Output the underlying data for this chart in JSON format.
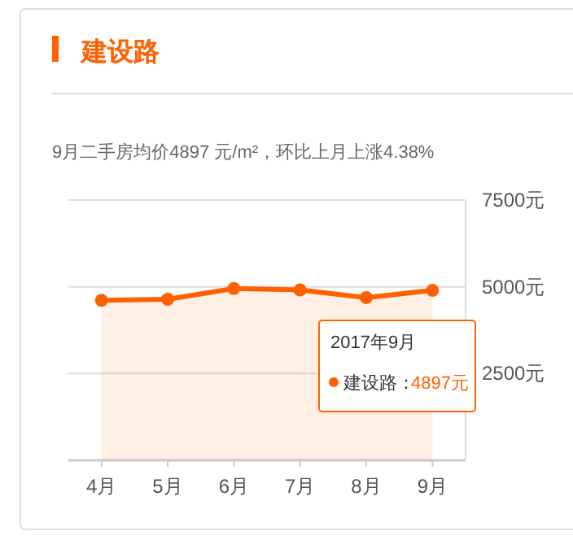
{
  "chart_data": {
    "type": "area",
    "subtitle": "9月二手房均价4897 元/m²，环比上月上涨4.38%",
    "categories": [
      "4月",
      "5月",
      "6月",
      "7月",
      "8月",
      "9月"
    ],
    "series": [
      {
        "name": "建设路",
        "color": "#ff6000",
        "values": [
          4610,
          4640,
          4950,
          4910,
          4690,
          4897
        ]
      }
    ],
    "ylim": [
      0,
      7500
    ],
    "yticks": [
      {
        "value": 2500,
        "label": "2500元"
      },
      {
        "value": 5000,
        "label": "5000元"
      },
      {
        "value": 7500,
        "label": "7500元"
      }
    ],
    "grid": "y",
    "legend": "top left",
    "marker": "circle",
    "line_style": "solid",
    "annotations": [
      "2017年9月",
      "建设路：",
      "4897元"
    ]
  }
}
